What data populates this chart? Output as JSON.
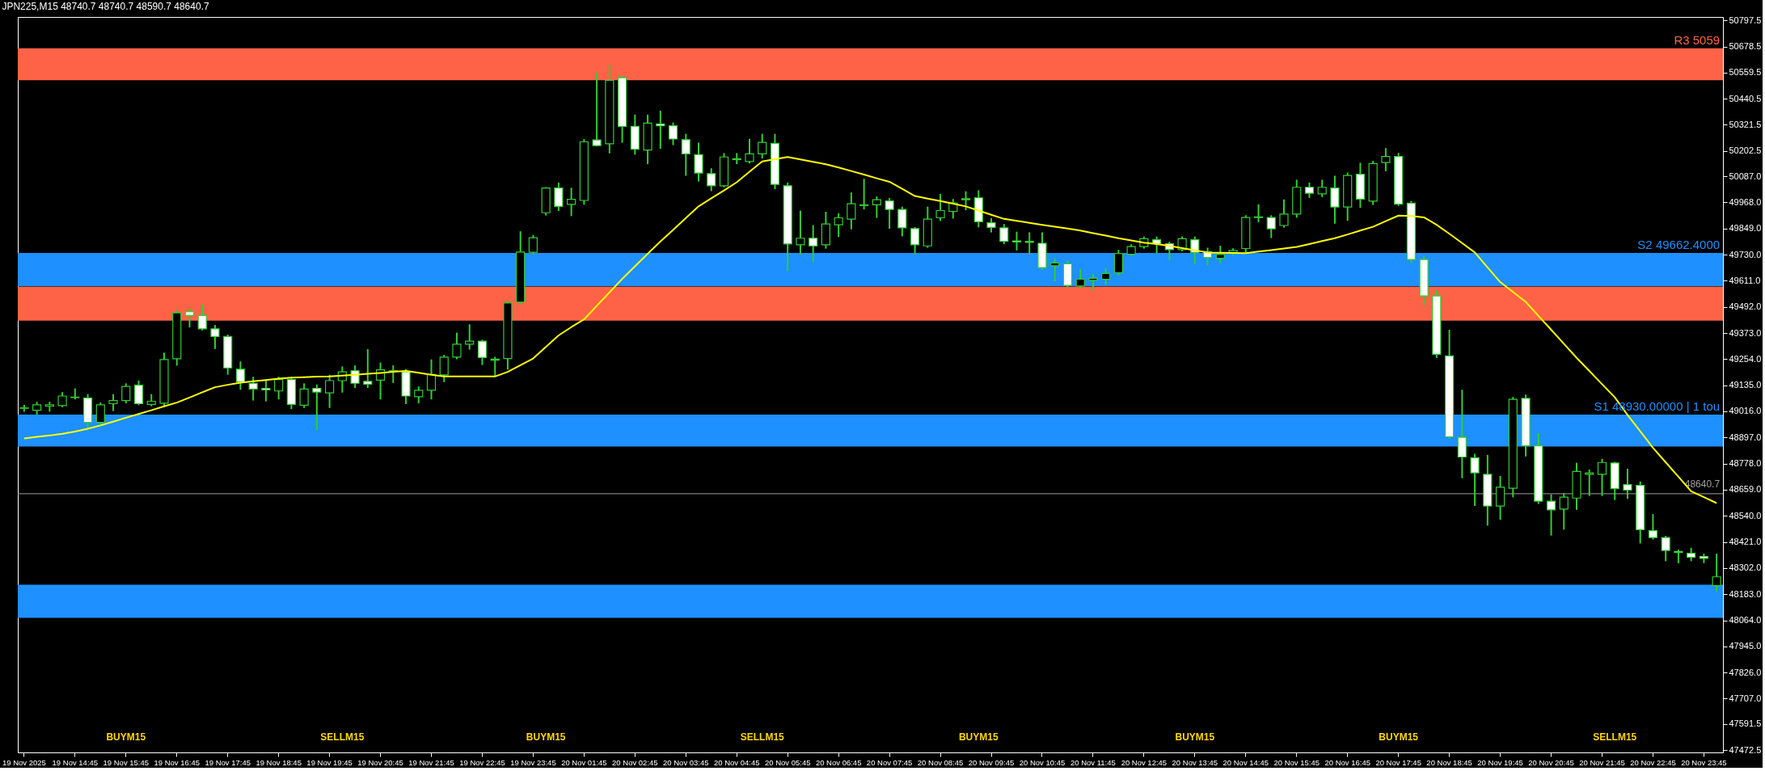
{
  "chart_data": {
    "type": "candlestick",
    "title": "JPN225,M15  48740.7 48740.7 48590.7 48640.7",
    "categories": [
      "19 Nov 2025",
      null,
      null,
      null,
      "19 Nov 14:45",
      null,
      null,
      null,
      "19 Nov 15:45",
      null,
      null,
      null,
      "19 Nov 16:45",
      null,
      null,
      null,
      "19 Nov 17:45",
      null,
      null,
      null,
      "19 Nov 18:45",
      null,
      null,
      null,
      "19 Nov 19:45",
      null,
      null,
      null,
      "19 Nov 20:45",
      null,
      null,
      null,
      "19 Nov 21:45",
      null,
      null,
      null,
      "19 Nov 22:45",
      null,
      null,
      null,
      "19 Nov 23:45",
      null,
      null,
      null,
      "20 Nov 01:45",
      null,
      null,
      null,
      "20 Nov 02:45",
      null,
      null,
      null,
      "20 Nov 03:45",
      null,
      null,
      null,
      "20 Nov 04:45",
      null,
      null,
      null,
      "20 Nov 05:45",
      null,
      null,
      null,
      "20 Nov 06:45",
      null,
      null,
      null,
      "20 Nov 07:45",
      null,
      null,
      null,
      "20 Nov 08:45",
      null,
      null,
      null,
      "20 Nov 09:45",
      null,
      null,
      null,
      "20 Nov 10:45",
      null,
      null,
      null,
      "20 Nov 11:45",
      null,
      null,
      null,
      "20 Nov 12:45",
      null,
      null,
      null,
      "20 Nov 13:45",
      null,
      null,
      null,
      "20 Nov 14:45",
      null,
      null,
      null,
      "20 Nov 15:45",
      null,
      null,
      null,
      "20 Nov 16:45",
      null,
      null,
      null,
      "20 Nov 17:45",
      null,
      null,
      null,
      "20 Nov 18:45",
      null,
      null,
      null,
      "20 Nov 19:45",
      null,
      null,
      null,
      "20 Nov 20:45",
      null,
      null,
      null,
      "20 Nov 21:45",
      null,
      null,
      null,
      "20 Nov 22:45",
      null,
      null,
      null,
      "20 Nov 23:45",
      null
    ],
    "ohlc": [
      [
        49030,
        49042,
        49018,
        49032
      ],
      [
        49021,
        49056,
        49004,
        49046
      ],
      [
        49039,
        49056,
        49018,
        49046
      ],
      [
        49042,
        49100,
        49039,
        49086
      ],
      [
        49079,
        49117,
        49074,
        49081
      ],
      [
        49077,
        49091,
        48943,
        48966
      ],
      [
        48966,
        49053,
        48960,
        49046
      ],
      [
        49051,
        49091,
        49021,
        49065
      ],
      [
        49065,
        49140,
        49056,
        49130
      ],
      [
        49135,
        49153,
        49048,
        49051
      ],
      [
        49048,
        49091,
        49043,
        49062
      ],
      [
        49053,
        49280,
        49039,
        49252
      ],
      [
        49256,
        49476,
        49228,
        49465
      ],
      [
        49470,
        49484,
        49402,
        49453
      ],
      [
        49453,
        49502,
        49388,
        49392
      ],
      [
        49392,
        49406,
        49304,
        49357
      ],
      [
        49357,
        49362,
        49187,
        49214
      ],
      [
        49208,
        49240,
        49118,
        49151
      ],
      [
        49144,
        49170,
        49069,
        49118
      ],
      [
        49121,
        49153,
        49065,
        49114
      ],
      [
        49109,
        49170,
        49074,
        49161
      ],
      [
        49161,
        49170,
        49030,
        49048
      ],
      [
        49044,
        49140,
        49035,
        49118
      ],
      [
        49121,
        49135,
        48934,
        49104
      ],
      [
        49100,
        49179,
        49035,
        49156
      ],
      [
        49156,
        49217,
        49105,
        49196
      ],
      [
        49201,
        49222,
        49126,
        49144
      ],
      [
        49153,
        49296,
        49126,
        49140
      ],
      [
        49158,
        49235,
        49074,
        49205
      ],
      [
        49201,
        49222,
        49149,
        49200
      ],
      [
        49196,
        49205,
        49053,
        49086
      ],
      [
        49083,
        49126,
        49056,
        49112
      ],
      [
        49112,
        49249,
        49074,
        49184
      ],
      [
        49182,
        49270,
        49153,
        49263
      ],
      [
        49263,
        49371,
        49257,
        49322
      ],
      [
        49322,
        49409,
        49301,
        49336
      ],
      [
        49336,
        49339,
        49231,
        49261
      ],
      [
        49254,
        49261,
        49179,
        49249
      ],
      [
        49257,
        49519,
        49210,
        49510
      ],
      [
        49514,
        49833,
        49507,
        49742
      ],
      [
        49741,
        49816,
        49734,
        49807
      ],
      [
        49921,
        50034,
        49912,
        50034
      ],
      [
        50034,
        50055,
        49933,
        49950
      ],
      [
        49959,
        50031,
        49909,
        49982
      ],
      [
        49977,
        50253,
        49961,
        50244
      ],
      [
        50253,
        50555,
        50227,
        50227
      ],
      [
        50235,
        50594,
        50195,
        50524
      ],
      [
        50536,
        50541,
        50244,
        50314
      ],
      [
        50315,
        50364,
        50189,
        50210
      ],
      [
        50207,
        50364,
        50146,
        50329
      ],
      [
        50326,
        50382,
        50216,
        50317
      ],
      [
        50317,
        50329,
        50233,
        50257
      ],
      [
        50254,
        50277,
        50093,
        50189
      ],
      [
        50186,
        50237,
        50067,
        50102
      ],
      [
        50099,
        50120,
        50023,
        50044
      ],
      [
        50044,
        50189,
        50041,
        50175
      ],
      [
        50163,
        50189,
        50146,
        50167
      ],
      [
        50154,
        50254,
        50149,
        50189
      ],
      [
        50189,
        50277,
        50172,
        50242
      ],
      [
        50237,
        50277,
        50032,
        50050
      ],
      [
        50044,
        50055,
        49660,
        49779
      ],
      [
        49775,
        49927,
        49735,
        49805
      ],
      [
        49805,
        49861,
        49700,
        49770
      ],
      [
        49775,
        49922,
        49761,
        49870
      ],
      [
        49866,
        49915,
        49814,
        49898
      ],
      [
        49892,
        50010,
        49849,
        49962
      ],
      [
        49954,
        50072,
        49940,
        49957
      ],
      [
        49957,
        49992,
        49901,
        49980
      ],
      [
        49975,
        49985,
        49852,
        49936
      ],
      [
        49936,
        49945,
        49817,
        49852
      ],
      [
        49849,
        49852,
        49735,
        49775
      ],
      [
        49770,
        49945,
        49765,
        49892
      ],
      [
        49898,
        50003,
        49887,
        49931
      ],
      [
        49927,
        49980,
        49898,
        49966
      ],
      [
        49980,
        50015,
        49936,
        49985
      ],
      [
        49989,
        50020,
        49858,
        49880
      ],
      [
        49875,
        49893,
        49835,
        49854
      ],
      [
        49852,
        49866,
        49782,
        49791
      ],
      [
        49793,
        49831,
        49753,
        49788
      ],
      [
        49791,
        49828,
        49735,
        49786
      ],
      [
        49782,
        49828,
        49665,
        49671
      ],
      [
        49679,
        49709,
        49613,
        49692
      ],
      [
        49688,
        49700,
        49583,
        49590
      ],
      [
        49587,
        49660,
        49583,
        49618
      ],
      [
        49613,
        49639,
        49569,
        49622
      ],
      [
        49618,
        49665,
        49596,
        49644
      ],
      [
        49648,
        49748,
        49639,
        49735
      ],
      [
        49732,
        49774,
        49727,
        49767
      ],
      [
        49767,
        49809,
        49761,
        49803
      ],
      [
        49798,
        49809,
        49740,
        49780
      ],
      [
        49780,
        49785,
        49708,
        49753
      ],
      [
        49753,
        49809,
        49749,
        49803
      ],
      [
        49798,
        49809,
        49690,
        49740
      ],
      [
        49744,
        49758,
        49686,
        49717
      ],
      [
        49713,
        49767,
        49695,
        49731
      ],
      [
        49740,
        49755,
        49731,
        49749
      ],
      [
        49758,
        49906,
        49744,
        49899
      ],
      [
        49899,
        49956,
        49881,
        49902
      ],
      [
        49899,
        49906,
        49809,
        49848
      ],
      [
        49863,
        49978,
        49857,
        49915
      ],
      [
        49915,
        50068,
        49902,
        50037
      ],
      [
        50037,
        50055,
        49992,
        50010
      ],
      [
        50007,
        50068,
        49996,
        50037
      ],
      [
        50034,
        50086,
        49875,
        49947
      ],
      [
        49947,
        50100,
        49888,
        50091
      ],
      [
        50096,
        50145,
        49947,
        49983
      ],
      [
        49974,
        50154,
        49960,
        50145
      ],
      [
        50150,
        50212,
        50114,
        50177
      ],
      [
        50177,
        50190,
        49956,
        49960
      ],
      [
        49965,
        49971,
        49695,
        49708
      ],
      [
        49708,
        49719,
        49503,
        49542
      ],
      [
        49542,
        49564,
        49263,
        49276
      ],
      [
        49269,
        49384,
        48895,
        48900
      ],
      [
        48898,
        49111,
        48715,
        48808
      ],
      [
        48805,
        48819,
        48589,
        48736
      ],
      [
        48729,
        48814,
        48499,
        48585
      ],
      [
        48585,
        48718,
        48526,
        48670
      ],
      [
        48666,
        49078,
        48628,
        49071
      ],
      [
        49075,
        49089,
        48814,
        48859
      ],
      [
        48859,
        48913,
        48598,
        48607
      ],
      [
        48607,
        48634,
        48454,
        48567
      ],
      [
        48571,
        48639,
        48481,
        48625
      ],
      [
        48621,
        48778,
        48571,
        48742
      ],
      [
        48729,
        48747,
        48634,
        48736
      ],
      [
        48729,
        48796,
        48634,
        48783
      ],
      [
        48781,
        48783,
        48616,
        48664
      ],
      [
        48682,
        48751,
        48621,
        48657
      ],
      [
        48679,
        48693,
        48418,
        48477
      ],
      [
        48472,
        48544,
        48436,
        48441
      ],
      [
        48441,
        48445,
        48337,
        48382
      ],
      [
        48378,
        48382,
        48328,
        48373
      ],
      [
        48369,
        48391,
        48337,
        48351
      ],
      [
        48355,
        48364,
        48328,
        48346
      ],
      [
        48222,
        48364,
        48200,
        48262
      ]
    ],
    "color": "#32cd32",
    "colors": [
      "#000000",
      "#000000",
      "#000000",
      "#000000",
      "#000000",
      "#ffffff",
      "#000000",
      "#000000",
      "#000000",
      "#ffffff",
      "#000000",
      "#000000",
      "#000000",
      "#ffffff",
      "#ffffff",
      "#ffffff",
      "#ffffff",
      "#ffffff",
      "#ffffff",
      "#ffffff",
      "#000000",
      "#ffffff",
      "#000000",
      "#ffffff",
      "#000000",
      "#000000",
      "#ffffff",
      "#ffffff",
      "#000000",
      "#ffffff",
      "#ffffff",
      "#000000",
      "#000000",
      "#000000",
      "#000000",
      "#000000",
      "#ffffff",
      "#ffffff",
      "#000000",
      "#000000",
      "#000000",
      "#000000",
      "#ffffff",
      "#000000",
      "#000000",
      "#ffffff",
      "#000000",
      "#ffffff",
      "#ffffff",
      "#000000",
      "#ffffff",
      "#ffffff",
      "#ffffff",
      "#ffffff",
      "#ffffff",
      "#000000",
      "#000000",
      "#000000",
      "#000000",
      "#ffffff",
      "#ffffff",
      "#000000",
      "#ffffff",
      "#000000",
      "#000000",
      "#000000",
      "#000000",
      "#000000",
      "#ffffff",
      "#ffffff",
      "#ffffff",
      "#000000",
      "#000000",
      "#000000",
      "#000000",
      "#ffffff",
      "#ffffff",
      "#ffffff",
      "#ffffff",
      "#ffffff",
      "#ffffff",
      "#000000",
      "#ffffff",
      "#000000",
      "#000000",
      "#000000",
      "#000000",
      "#000000",
      "#000000",
      "#ffffff",
      "#ffffff",
      "#000000",
      "#ffffff",
      "#ffffff",
      "#000000",
      "#000000",
      "#000000",
      "#000000",
      "#ffffff",
      "#000000",
      "#000000",
      "#ffffff",
      "#000000",
      "#ffffff",
      "#000000",
      "#ffffff",
      "#000000",
      "#000000",
      "#ffffff",
      "#ffffff",
      "#ffffff",
      "#ffffff",
      "#ffffff",
      "#ffffff",
      "#ffffff",
      "#ffffff",
      "#000000",
      "#000000",
      "#ffffff",
      "#ffffff",
      "#ffffff",
      "#000000",
      "#000000",
      "#000000",
      "#000000",
      "#ffffff",
      "#ffffff",
      "#ffffff",
      "#ffffff",
      "#ffffff",
      "#ffffff",
      "#ffffff",
      "#ffffff",
      "#000000"
    ],
    "series": [
      {
        "type": "line",
        "color": "#ffff00",
        "values": [
          48893,
          48900,
          48906,
          48914,
          48924,
          48937,
          48952,
          48969,
          48987,
          49004,
          49021,
          49039,
          49056,
          49079,
          49103,
          49126,
          49137,
          49147,
          49153,
          49159,
          49165,
          49170,
          49172,
          49174,
          49175,
          49179,
          49183,
          49187,
          49191,
          49196,
          49200,
          49192,
          49183,
          49175,
          49175,
          49175,
          49175,
          49175,
          49196,
          49226,
          49257,
          49310,
          49362,
          49400,
          49435,
          49497,
          49558,
          49620,
          49677,
          49734,
          49790,
          49843,
          49897,
          49950,
          49987,
          50023,
          50060,
          50108,
          50155,
          50165,
          50175,
          50164,
          50153,
          50142,
          50127,
          50111,
          50095,
          50078,
          50062,
          50030,
          49997,
          49985,
          49974,
          49962,
          49950,
          49931,
          49912,
          49893,
          49884,
          49875,
          49866,
          49857,
          49849,
          49840,
          49828,
          49817,
          49805,
          49795,
          49785,
          49778,
          49770,
          49760,
          49750,
          49740,
          49739,
          49738,
          49737,
          49744,
          49751,
          49758,
          49765,
          49778,
          49792,
          49805,
          49822,
          49840,
          49857,
          49883,
          49908,
          49906,
          49900,
          49866,
          49825,
          49783,
          49740,
          49672,
          49605,
          49560,
          49515,
          49451,
          49388,
          49324,
          49260,
          49200,
          49140,
          49080,
          49000,
          48925,
          48850,
          48784,
          48718,
          48652,
          48625,
          48598
        ]
      }
    ],
    "ylim": [
      47462,
      50813
    ],
    "yticks": [
      50797.5,
      50678.5,
      50559.5,
      50440.5,
      50321.5,
      50202.5,
      {
        "value": 50087,
        "label": "50087.0"
      },
      {
        "value": 49968,
        "label": "49968.0"
      },
      {
        "value": 49849,
        "label": "49849.0"
      },
      {
        "value": 49730,
        "label": "49730.0"
      },
      {
        "value": 49611,
        "label": "49611.0"
      },
      {
        "value": 49492,
        "label": "49492.0"
      },
      {
        "value": 49373,
        "label": "49373.0"
      },
      {
        "value": 49254,
        "label": "49254.0"
      },
      {
        "value": 49135,
        "label": "49135.0"
      },
      {
        "value": 49016,
        "label": "49016.0"
      },
      {
        "value": 48897,
        "label": "48897.0"
      },
      {
        "value": 48778,
        "label": "48778.0"
      },
      {
        "value": 48659,
        "label": "48659.0"
      },
      {
        "value": 48540,
        "label": "48540.0"
      },
      {
        "value": 48421,
        "label": "48421.0"
      },
      {
        "value": 48302,
        "label": "48302.0"
      },
      {
        "value": 48183,
        "label": "48183.0"
      },
      {
        "value": 48064,
        "label": "48064.0"
      },
      {
        "value": 47945,
        "label": "47945.0"
      },
      {
        "value": 47826,
        "label": "47826.0"
      },
      {
        "value": 47707,
        "label": "47707.0"
      },
      47591.5,
      47472.5
    ],
    "bands": [
      {
        "axis": "y",
        "from": 50525,
        "to": 50670,
        "label": "R3 5059",
        "color": "#ff6347"
      },
      {
        "axis": "y",
        "from": 49586,
        "to": 49738,
        "label": "S2 49662.4000",
        "color": "#1e90ff"
      },
      {
        "axis": "y",
        "from": 49429,
        "to": 49584,
        "color": "#ff6347"
      },
      {
        "axis": "y",
        "from": 48856,
        "to": 49001,
        "label": "S1 48930.00000 | 1 tou",
        "color": "#1e90ff"
      },
      {
        "axis": "y",
        "from": 48075,
        "to": 48226,
        "color": "#1e90ff"
      }
    ],
    "ref_lines": [
      {
        "axis": "y",
        "value": 48640.7,
        "label": "48640.7",
        "color": "#a0a0a0"
      }
    ],
    "annotations": [
      "BUYM15",
      "SELLM15",
      "BUYM15",
      "SELLM15",
      "BUYM15",
      "BUYM15",
      "BUYM15",
      "SELLM15"
    ]
  }
}
